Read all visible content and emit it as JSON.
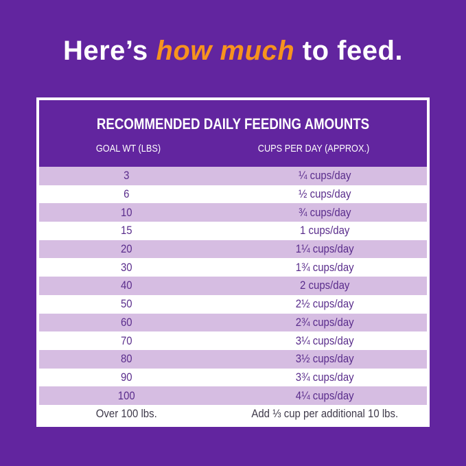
{
  "headline": {
    "before": "Here’s ",
    "highlight": "how much",
    "after": " to feed."
  },
  "table": {
    "title": "RECOMMENDED DAILY FEEDING AMOUNTS",
    "columns": [
      "GOAL WT (LBS)",
      "CUPS PER DAY (APPROX.)"
    ],
    "rows": [
      [
        "3",
        "¼ cups/day"
      ],
      [
        "6",
        "½ cups/day"
      ],
      [
        "10",
        "¾ cups/day"
      ],
      [
        "15",
        "1 cups/day"
      ],
      [
        "20",
        "1¼ cups/day"
      ],
      [
        "30",
        "1¾ cups/day"
      ],
      [
        "40",
        "2 cups/day"
      ],
      [
        "50",
        "2½ cups/day"
      ],
      [
        "60",
        "2¾ cups/day"
      ],
      [
        "70",
        "3¼ cups/day"
      ],
      [
        "80",
        "3½ cups/day"
      ],
      [
        "90",
        "3¾ cups/day"
      ],
      [
        "100",
        "4¼ cups/day"
      ],
      [
        "Over 100 lbs.",
        "Add ⅓ cup per additional 10 lbs."
      ]
    ]
  },
  "colors": {
    "background": "#62259f",
    "highlight": "#f7931e",
    "row_alt": "#d6bde2"
  }
}
